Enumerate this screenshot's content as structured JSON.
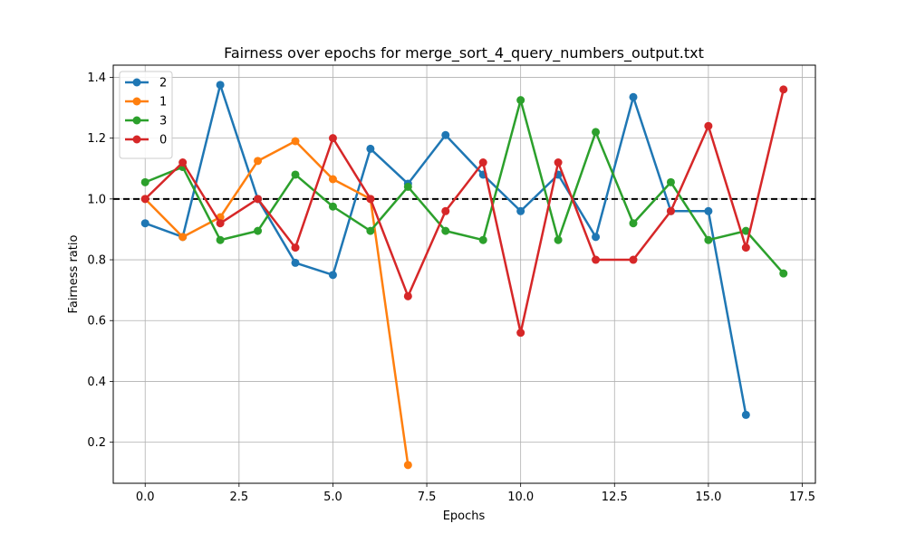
{
  "chart_data": {
    "type": "line",
    "title": "Fairness over epochs for merge_sort_4_query_numbers_output.txt",
    "xlabel": "Epochs",
    "ylabel": "Fairness ratio",
    "xlim": [
      -0.85,
      17.85
    ],
    "ylim": [
      0.065,
      1.44
    ],
    "xticks": [
      0.0,
      2.5,
      5.0,
      7.5,
      10.0,
      12.5,
      15.0,
      17.5
    ],
    "xtick_labels": [
      "0.0",
      "2.5",
      "5.0",
      "7.5",
      "10.0",
      "12.5",
      "15.0",
      "17.5"
    ],
    "yticks": [
      0.2,
      0.4,
      0.6,
      0.8,
      1.0,
      1.2,
      1.4
    ],
    "ytick_labels": [
      "0.2",
      "0.4",
      "0.6",
      "0.8",
      "1.0",
      "1.2",
      "1.4"
    ],
    "grid": true,
    "legend_position": "top-left",
    "reference_line": {
      "y": 1.0,
      "style": "dashed",
      "color": "#000000"
    },
    "series": [
      {
        "name": "2",
        "color": "#1f77b4",
        "x": [
          0,
          1,
          2,
          3,
          4,
          5,
          6,
          7,
          8,
          9,
          10,
          11,
          12,
          13,
          14,
          15,
          16
        ],
        "y": [
          0.92,
          0.875,
          1.375,
          1.0,
          0.79,
          0.75,
          1.165,
          1.05,
          1.21,
          1.08,
          0.96,
          1.08,
          0.875,
          1.335,
          0.96,
          0.96,
          0.29
        ]
      },
      {
        "name": "1",
        "color": "#ff7f0e",
        "x": [
          0,
          1,
          2,
          3,
          4,
          5,
          6,
          7
        ],
        "y": [
          1.0,
          0.875,
          0.94,
          1.125,
          1.19,
          1.065,
          1.0,
          0.125
        ]
      },
      {
        "name": "3",
        "color": "#2ca02c",
        "x": [
          0,
          1,
          2,
          3,
          4,
          5,
          6,
          7,
          8,
          9,
          10,
          11,
          12,
          13,
          14,
          15,
          16,
          17
        ],
        "y": [
          1.055,
          1.105,
          0.865,
          0.895,
          1.08,
          0.975,
          0.895,
          1.04,
          0.895,
          0.865,
          1.325,
          0.865,
          1.22,
          0.92,
          1.055,
          0.865,
          0.895,
          0.755
        ]
      },
      {
        "name": "0",
        "color": "#d62728",
        "x": [
          0,
          1,
          2,
          3,
          4,
          5,
          6,
          7,
          8,
          9,
          10,
          11,
          12,
          13,
          14,
          15,
          16,
          17
        ],
        "y": [
          1.0,
          1.12,
          0.92,
          1.0,
          0.84,
          1.2,
          1.0,
          0.68,
          0.96,
          1.12,
          0.56,
          1.12,
          0.8,
          0.8,
          0.96,
          1.24,
          0.84,
          1.36
        ]
      }
    ]
  }
}
